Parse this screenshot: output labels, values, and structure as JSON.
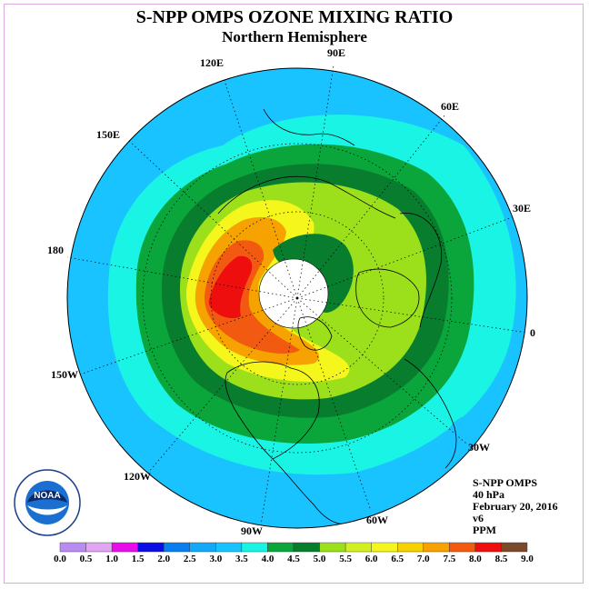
{
  "title": "S-NPP OMPS OZONE MIXING RATIO",
  "subtitle": "Northern Hemisphere",
  "map": {
    "projection": "north-polar-stereographic",
    "longitude_labels": [
      "90E",
      "60E",
      "30E",
      "0",
      "30W",
      "60W",
      "90W",
      "120W",
      "150W",
      "180",
      "150E",
      "120E"
    ],
    "polar_no_data_color": "#ffffff",
    "field_levels": [
      {
        "ppm": "3.0-3.5",
        "color": "#19c3ff"
      },
      {
        "ppm": "3.5-4.0",
        "color": "#19f4e4"
      },
      {
        "ppm": "4.0-4.5",
        "color": "#0aa63c"
      },
      {
        "ppm": "4.5-5.0",
        "color": "#087d2e"
      },
      {
        "ppm": "5.0-5.5",
        "color": "#9be01a"
      },
      {
        "ppm": "6.0-6.5",
        "color": "#f4f61c"
      },
      {
        "ppm": "7.0-7.5",
        "color": "#f6a200"
      },
      {
        "ppm": "7.5-8.0",
        "color": "#f25a12"
      },
      {
        "ppm": "8.0-8.5",
        "color": "#ee0e0e"
      }
    ]
  },
  "info": {
    "instrument": "S-NPP OMPS",
    "pressure": "40 hPa",
    "date": "February 20, 2016",
    "version": "v6",
    "units": "PPM"
  },
  "logo": {
    "text": "NOAA"
  },
  "colorbar": {
    "ticks": [
      "0.0",
      "0.5",
      "1.0",
      "1.5",
      "2.0",
      "2.5",
      "3.0",
      "3.5",
      "4.0",
      "4.5",
      "5.0",
      "5.5",
      "6.0",
      "6.5",
      "7.0",
      "7.5",
      "8.0",
      "8.5",
      "9.0"
    ],
    "colors": [
      "#b98cf2",
      "#e0a6f2",
      "#e80ce8",
      "#0c0ce6",
      "#0a7ef0",
      "#14a8f8",
      "#19c3ff",
      "#19f4e4",
      "#0aa63c",
      "#087d2e",
      "#9be01a",
      "#d2f020",
      "#f4f61c",
      "#f6d200",
      "#f6a200",
      "#f25a12",
      "#ee0e0e",
      "#7a4a2a"
    ]
  }
}
